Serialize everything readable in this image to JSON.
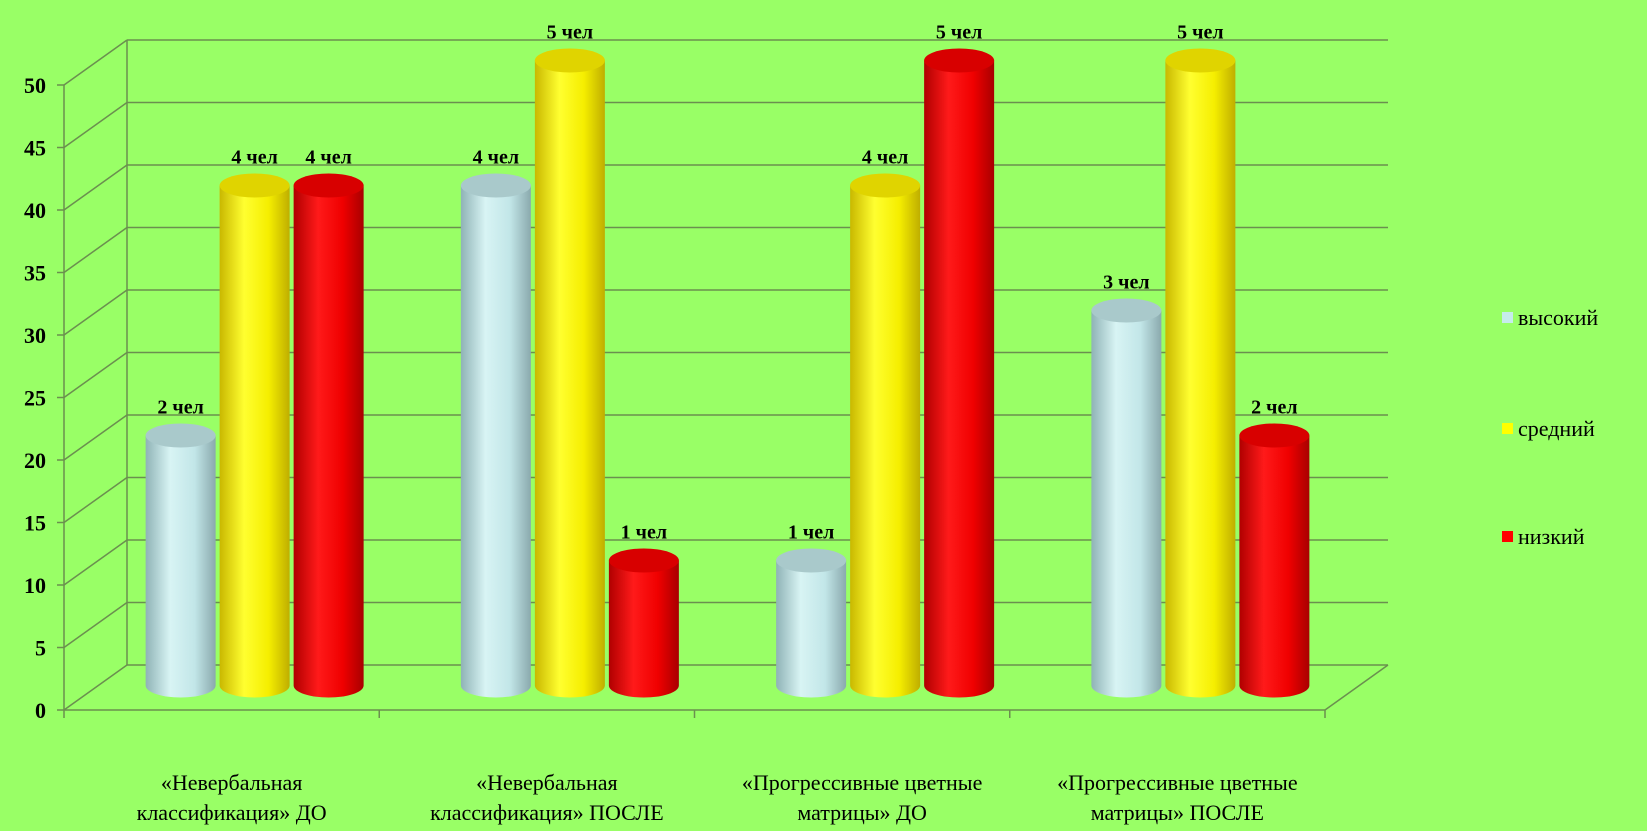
{
  "chart_data": {
    "type": "bar",
    "style": "3d-cylinder",
    "categories": [
      [
        "«Невербальная",
        "классификация» ДО"
      ],
      [
        "«Невербальная",
        "классификация» ПОСЛЕ"
      ],
      [
        "«Прогрессивные цветные",
        "матрицы» ДО"
      ],
      [
        "«Прогрессивные цветные",
        "матрицы» ПОСЛЕ"
      ]
    ],
    "series": [
      {
        "name": "высокий",
        "color": "#c6ecec",
        "values": [
          20,
          40,
          10,
          30
        ],
        "labels": [
          "2 чел",
          "4 чел",
          "1 чел",
          "3 чел"
        ]
      },
      {
        "name": "средний",
        "color": "#ffff00",
        "values": [
          40,
          50,
          40,
          50
        ],
        "labels": [
          "4 чел",
          "5 чел",
          "4 чел",
          "5 чел"
        ]
      },
      {
        "name": "низкий",
        "color": "#ff0000",
        "values": [
          40,
          10,
          50,
          20
        ],
        "labels": [
          "4 чел",
          "1 чел",
          "5 чел",
          "2 чел"
        ]
      }
    ],
    "ylim": [
      0,
      50
    ],
    "yticks": [
      0,
      5,
      10,
      15,
      20,
      25,
      30,
      35,
      40,
      45,
      50
    ],
    "grid": true,
    "legend_position": "right"
  }
}
